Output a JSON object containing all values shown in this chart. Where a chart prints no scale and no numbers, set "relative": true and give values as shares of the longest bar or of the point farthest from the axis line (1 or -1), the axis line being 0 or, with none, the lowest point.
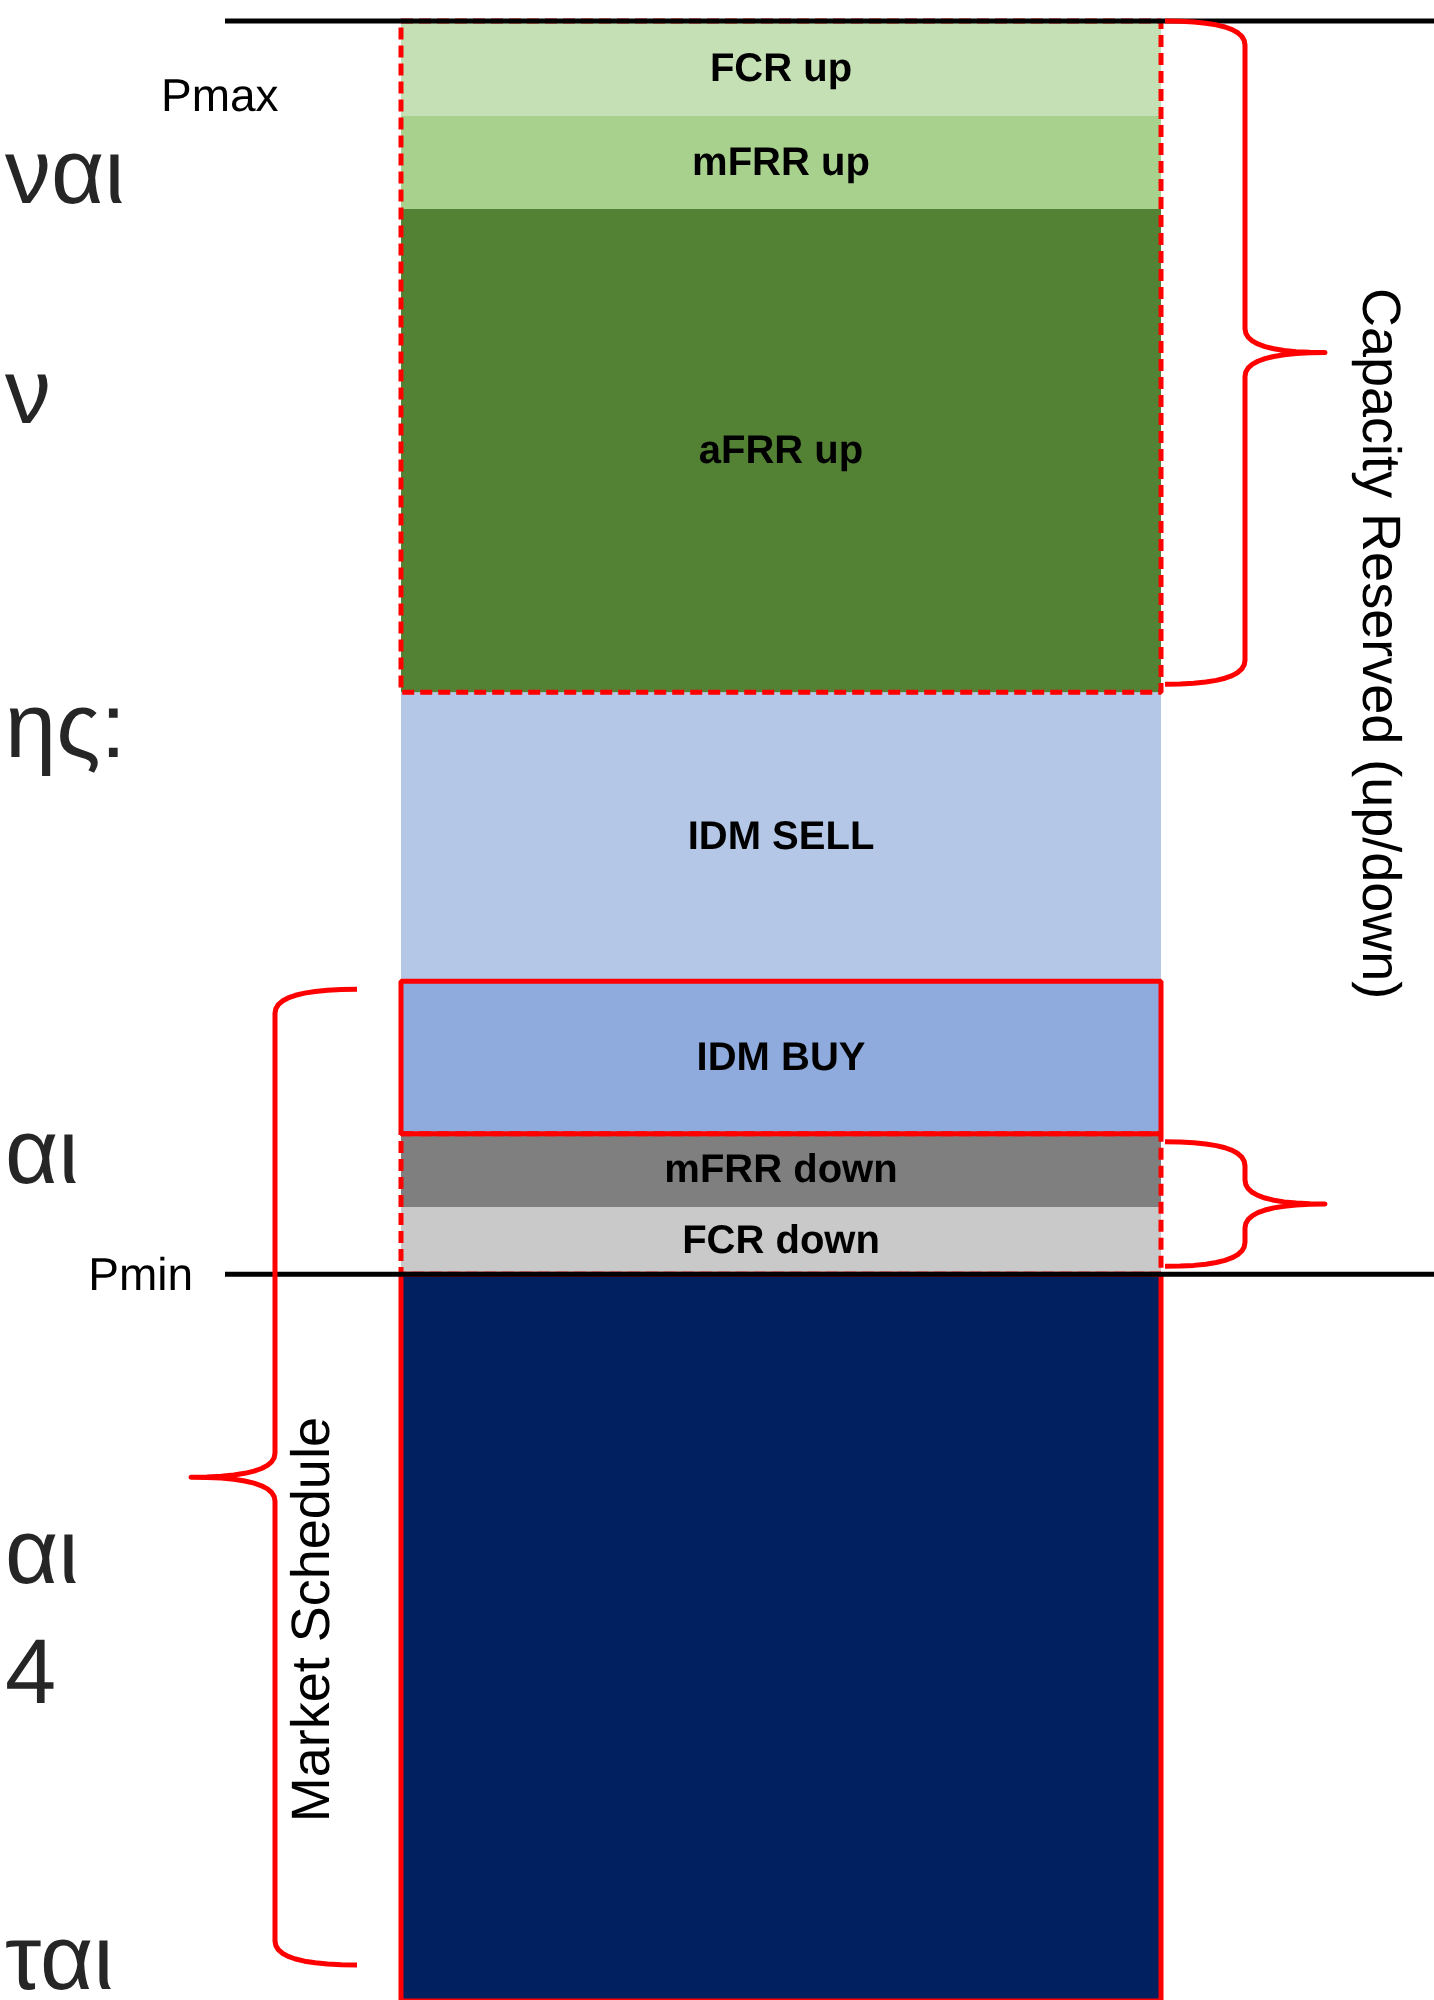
{
  "chart_data": {
    "type": "bar",
    "stacked": true,
    "relative": true,
    "categories": [
      null
    ],
    "series": [
      {
        "color": "#002060",
        "values": [
          0.367
        ],
        "line_style": "solid"
      },
      {
        "name": "FCR down",
        "color": "#c9c9c9",
        "values": [
          0.034
        ],
        "line_style": "dashed"
      },
      {
        "name": "mFRR down",
        "color": "#7f7f7f",
        "values": [
          0.037
        ],
        "line_style": "dashed"
      },
      {
        "name": "IDM BUY",
        "color": "#8faadc",
        "values": [
          0.077
        ],
        "line_style": "solid"
      },
      {
        "name": "IDM SELL",
        "color": "#b4c7e7",
        "values": [
          0.146
        ]
      },
      {
        "name": "aFRR up",
        "color": "#548235",
        "values": [
          0.244
        ],
        "line_style": "dashed"
      },
      {
        "name": "mFRR up",
        "color": "#a9d18e",
        "values": [
          0.047
        ],
        "line_style": "dashed"
      },
      {
        "name": "FCR up",
        "color": "#c5e0b4",
        "values": [
          0.048
        ],
        "line_style": "dashed"
      }
    ],
    "ref_lines": [
      {
        "axis": "y",
        "value": 1.0,
        "label": "Pmax"
      },
      {
        "axis": "y",
        "value": 0.367,
        "label": "Pmin"
      }
    ],
    "annotations": [
      "Capacity Reserved (up/down)",
      "Market Schedule",
      "ναι",
      "ν",
      "ης:",
      "αι",
      "αι",
      "4",
      "ται"
    ]
  }
}
